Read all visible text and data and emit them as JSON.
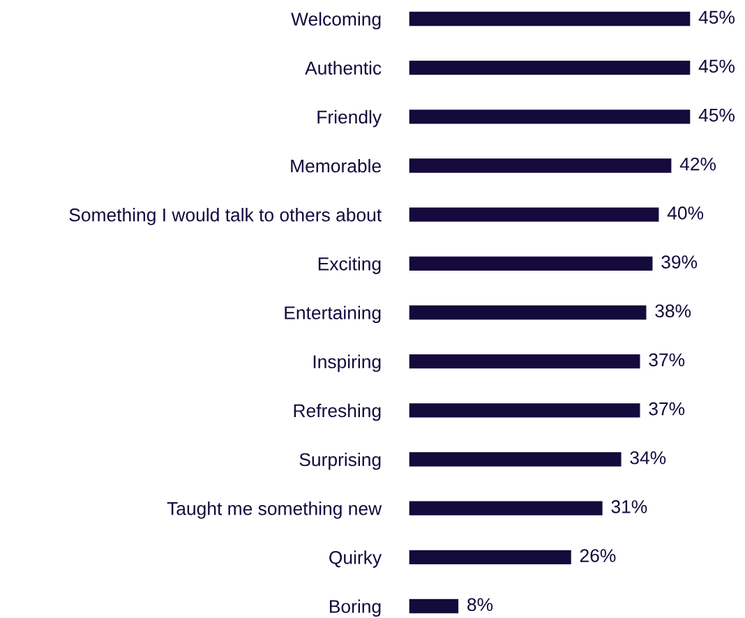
{
  "chart_data": {
    "type": "bar",
    "orientation": "horizontal",
    "categories": [
      "Welcoming",
      "Authentic",
      "Friendly",
      "Memorable",
      "Something I would talk to others about",
      "Exciting",
      "Entertaining",
      "Inspiring",
      "Refreshing",
      "Surprising",
      "Taught me something new",
      "Quirky",
      "Boring"
    ],
    "values": [
      45,
      45,
      45,
      42,
      40,
      39,
      38,
      37,
      37,
      34,
      31,
      26,
      8
    ],
    "value_labels": [
      "45%",
      "45%",
      "45%",
      "42%",
      "40%",
      "39%",
      "38%",
      "37%",
      "37%",
      "34%",
      "31%",
      "26%",
      "8%"
    ],
    "color": "#140a3c"
  }
}
